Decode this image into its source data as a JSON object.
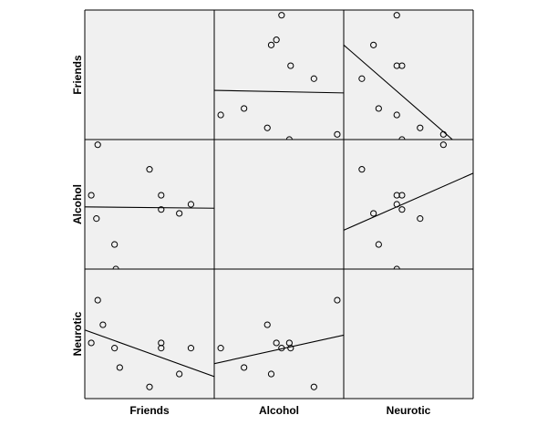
{
  "chart_data": {
    "type": "scatter",
    "subtype": "scatterplot-matrix",
    "variables": [
      "Friends",
      "Alcohol",
      "Neurotic"
    ],
    "axis_range": [
      0,
      1
    ],
    "fit_lines": true,
    "grid": false,
    "panel_background": "#f0f0f0",
    "colors": {
      "background": "#ffffff",
      "panel": "#f0f0f0",
      "stroke": "#000000",
      "marker_fill": "#ffffff"
    },
    "panels": [
      {
        "row_var": "Friends",
        "col_var": "Alcohol",
        "points": [
          [
            0.05,
            0.19
          ],
          [
            0.23,
            0.24
          ],
          [
            0.41,
            0.09
          ],
          [
            0.44,
            0.73
          ],
          [
            0.48,
            0.77
          ],
          [
            0.52,
            0.96
          ],
          [
            0.58,
            0.0
          ],
          [
            0.59,
            0.57
          ],
          [
            0.77,
            0.47
          ],
          [
            0.95,
            0.04
          ]
        ],
        "fit": [
          [
            0,
            0.38
          ],
          [
            1,
            0.36
          ]
        ]
      },
      {
        "row_var": "Friends",
        "col_var": "Neurotic",
        "points": [
          [
            0.14,
            0.47
          ],
          [
            0.23,
            0.73
          ],
          [
            0.27,
            0.24
          ],
          [
            0.41,
            0.19
          ],
          [
            0.41,
            0.57
          ],
          [
            0.41,
            0.96
          ],
          [
            0.45,
            0.57
          ],
          [
            0.45,
            0.0
          ],
          [
            0.59,
            0.09
          ],
          [
            0.77,
            0.04
          ]
        ],
        "fit": [
          [
            0,
            0.73
          ],
          [
            0.84,
            0.0
          ]
        ]
      },
      {
        "row_var": "Alcohol",
        "col_var": "Friends",
        "points": [
          [
            0.05,
            0.57
          ],
          [
            0.09,
            0.39
          ],
          [
            0.1,
            0.96
          ],
          [
            0.23,
            0.19
          ],
          [
            0.24,
            0.0
          ],
          [
            0.5,
            0.77
          ],
          [
            0.59,
            0.46
          ],
          [
            0.59,
            0.57
          ],
          [
            0.73,
            0.43
          ],
          [
            0.82,
            0.5
          ]
        ],
        "fit": [
          [
            0,
            0.48
          ],
          [
            1,
            0.47
          ]
        ]
      },
      {
        "row_var": "Alcohol",
        "col_var": "Neurotic",
        "points": [
          [
            0.14,
            0.77
          ],
          [
            0.23,
            0.43
          ],
          [
            0.27,
            0.19
          ],
          [
            0.41,
            0.0
          ],
          [
            0.41,
            0.5
          ],
          [
            0.41,
            0.57
          ],
          [
            0.45,
            0.46
          ],
          [
            0.45,
            0.57
          ],
          [
            0.59,
            0.39
          ],
          [
            0.77,
            0.96
          ]
        ],
        "fit": [
          [
            0,
            0.3
          ],
          [
            1,
            0.74
          ]
        ]
      },
      {
        "row_var": "Neurotic",
        "col_var": "Friends",
        "points": [
          [
            0.05,
            0.43
          ],
          [
            0.1,
            0.76
          ],
          [
            0.14,
            0.57
          ],
          [
            0.23,
            0.39
          ],
          [
            0.27,
            0.24
          ],
          [
            0.5,
            0.09
          ],
          [
            0.59,
            0.39
          ],
          [
            0.59,
            0.43
          ],
          [
            0.73,
            0.19
          ],
          [
            0.82,
            0.39
          ]
        ],
        "fit": [
          [
            0,
            0.53
          ],
          [
            1,
            0.17
          ]
        ]
      },
      {
        "row_var": "Neurotic",
        "col_var": "Alcohol",
        "points": [
          [
            0.05,
            0.39
          ],
          [
            0.23,
            0.24
          ],
          [
            0.41,
            0.57
          ],
          [
            0.44,
            0.19
          ],
          [
            0.48,
            0.43
          ],
          [
            0.52,
            0.39
          ],
          [
            0.58,
            0.43
          ],
          [
            0.59,
            0.39
          ],
          [
            0.77,
            0.09
          ],
          [
            0.95,
            0.76
          ]
        ],
        "fit": [
          [
            0,
            0.27
          ],
          [
            1,
            0.49
          ]
        ]
      }
    ]
  }
}
